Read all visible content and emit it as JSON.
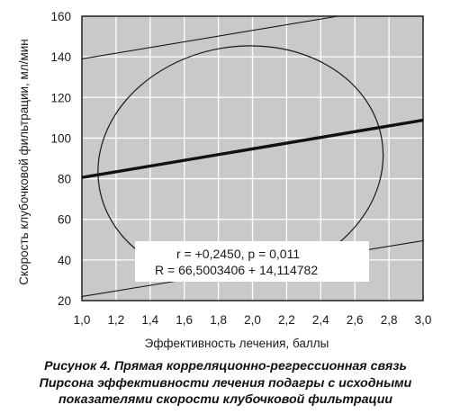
{
  "chart_data": {
    "type": "scatter",
    "title": "",
    "xlabel": "Эффективность лечения, баллы",
    "ylabel": "Скорость клубочковой фильтрации, мл/мин",
    "xlim": [
      1.0,
      3.0
    ],
    "ylim": [
      20,
      160
    ],
    "x_ticks": [
      "1,0",
      "1,2",
      "1,4",
      "1,6",
      "1,8",
      "2,0",
      "2,2",
      "2,4",
      "2,6",
      "2,8",
      "3,0"
    ],
    "y_ticks": [
      "20",
      "40",
      "60",
      "80",
      "100",
      "120",
      "140",
      "160"
    ],
    "grid": true,
    "background": "#c9c9c9",
    "regression": {
      "x": [
        1.0,
        3.0
      ],
      "y": [
        80.6,
        108.8
      ]
    },
    "confidence_lines": [
      {
        "x": [
          1.0,
          3.0
        ],
        "y": [
          22.0,
          49.5
        ]
      },
      {
        "x": [
          1.0,
          3.0
        ],
        "y": [
          139.0,
          167.0
        ]
      }
    ],
    "ellipse": {
      "center": [
        1.93,
        87.5
      ],
      "rx": 0.84,
      "ry": 57.5,
      "rotation": "slight"
    },
    "annotation": {
      "line1": "r = +0,2450, p = 0,011",
      "line2": "R = 66,5003406 + 14,114782"
    }
  },
  "caption": {
    "line1": "Рисунок 4. Прямая корреляционно-регрессионная связь",
    "line2": "Пирсона эффективности лечения подагры с исходными",
    "line3": "показателями скорости клубочковой фильтрации"
  }
}
